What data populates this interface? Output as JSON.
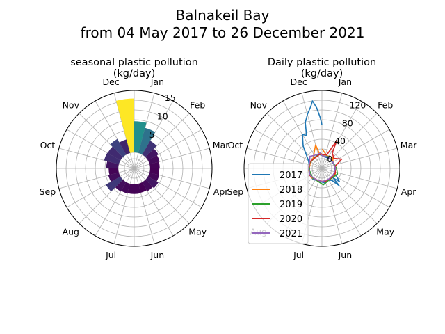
{
  "figure": {
    "title_line1": "Balnakeil Bay",
    "title_line2": "from 04 May 2017 to 26 December 2021"
  },
  "chart_data": [
    {
      "type": "polar-bar",
      "title_line1": "seasonal plastic pollution",
      "title_line2": "(kg/day)",
      "theta_direction": "clockwise",
      "theta_zero": "top",
      "month_labels": [
        "Jan",
        "Feb",
        "Mar",
        "Apr",
        "May",
        "Jun",
        "Jul",
        "Aug",
        "Sep",
        "Oct",
        "Nov",
        "Dec"
      ],
      "r_ticks": [
        5,
        10,
        15
      ],
      "r_tick_labels": [
        "5",
        "10",
        "15"
      ],
      "r_min": -4,
      "r_max": 15.5,
      "colormap": "viridis",
      "color_range": [
        2.3,
        13.5
      ],
      "bins": 24,
      "values": [
        7.8,
        6.5,
        4.0,
        3.0,
        2.6,
        2.4,
        2.3,
        2.5,
        3.0,
        2.6,
        2.3,
        2.4,
        2.4,
        2.5,
        2.7,
        4.2,
        2.7,
        2.4,
        3.0,
        3.8,
        3.7,
        4.5,
        3.5,
        13.5
      ]
    },
    {
      "type": "polar-line",
      "title_line1": "Daily plastic pollution",
      "title_line2": "(kg/day)",
      "theta_direction": "clockwise",
      "theta_zero": "top",
      "month_labels": [
        "Jan",
        "Feb",
        "Mar",
        "Apr",
        "May",
        "Jun",
        "Jul",
        "Aug",
        "Sep",
        "Oct",
        "Nov",
        "Dec"
      ],
      "r_ticks": [
        0,
        40,
        80,
        120
      ],
      "r_tick_labels": [
        "0",
        "40",
        "80",
        "120"
      ],
      "r_min": -20,
      "r_max": 140,
      "legend_location": "center-left",
      "series": [
        {
          "name": "2017",
          "color": "#1f77b4",
          "points": [
            [
              4,
              5
            ],
            [
              40,
              6
            ],
            [
              80,
              7
            ],
            [
              110,
              8
            ],
            [
              127,
              25
            ],
            [
              130,
              10
            ],
            [
              135,
              30
            ],
            [
              140,
              12
            ],
            [
              150,
              8
            ],
            [
              170,
              10
            ],
            [
              190,
              7
            ],
            [
              220,
              9
            ],
            [
              250,
              7
            ],
            [
              280,
              6
            ],
            [
              300,
              12
            ],
            [
              320,
              40
            ],
            [
              330,
              60
            ],
            [
              335,
              55
            ],
            [
              340,
              80
            ],
            [
              345,
              95
            ],
            [
              350,
              110
            ],
            [
              352,
              120
            ],
            [
              355,
              105
            ],
            [
              358,
              85
            ],
            [
              360,
              70
            ]
          ]
        },
        {
          "name": "2018",
          "color": "#ff7f0e",
          "points": [
            [
              1,
              20
            ],
            [
              20,
              8
            ],
            [
              45,
              12
            ],
            [
              60,
              6
            ],
            [
              90,
              8
            ],
            [
              115,
              10
            ],
            [
              140,
              7
            ],
            [
              170,
              8
            ],
            [
              200,
              6
            ],
            [
              230,
              9
            ],
            [
              260,
              7
            ],
            [
              290,
              6
            ],
            [
              320,
              8
            ],
            [
              345,
              30
            ],
            [
              350,
              12
            ],
            [
              360,
              10
            ]
          ]
        },
        {
          "name": "2019",
          "color": "#2ca02c",
          "points": [
            [
              1,
              6
            ],
            [
              30,
              8
            ],
            [
              60,
              6
            ],
            [
              90,
              10
            ],
            [
              110,
              14
            ],
            [
              130,
              9
            ],
            [
              150,
              8
            ],
            [
              175,
              14
            ],
            [
              195,
              8
            ],
            [
              225,
              7
            ],
            [
              260,
              6
            ],
            [
              290,
              8
            ],
            [
              320,
              6
            ],
            [
              345,
              10
            ],
            [
              360,
              7
            ]
          ]
        },
        {
          "name": "2020",
          "color": "#d62728",
          "points": [
            [
              1,
              8
            ],
            [
              20,
              10
            ],
            [
              28,
              45
            ],
            [
              34,
              18
            ],
            [
              50,
              12
            ],
            [
              65,
              25
            ],
            [
              80,
              8
            ],
            [
              110,
              9
            ],
            [
              140,
              7
            ],
            [
              170,
              8
            ],
            [
              200,
              6
            ],
            [
              240,
              9
            ],
            [
              270,
              7
            ],
            [
              300,
              8
            ],
            [
              330,
              6
            ],
            [
              350,
              9
            ],
            [
              360,
              8
            ]
          ]
        },
        {
          "name": "2021",
          "color": "#9467bd",
          "points": [
            [
              1,
              6
            ],
            [
              30,
              7
            ],
            [
              60,
              6
            ],
            [
              90,
              8
            ],
            [
              120,
              7
            ],
            [
              150,
              6
            ],
            [
              180,
              7
            ],
            [
              210,
              6
            ],
            [
              240,
              8
            ],
            [
              270,
              7
            ],
            [
              300,
              9
            ],
            [
              315,
              15
            ],
            [
              325,
              12
            ],
            [
              340,
              10
            ],
            [
              355,
              12
            ],
            [
              360,
              6
            ]
          ]
        }
      ]
    }
  ]
}
